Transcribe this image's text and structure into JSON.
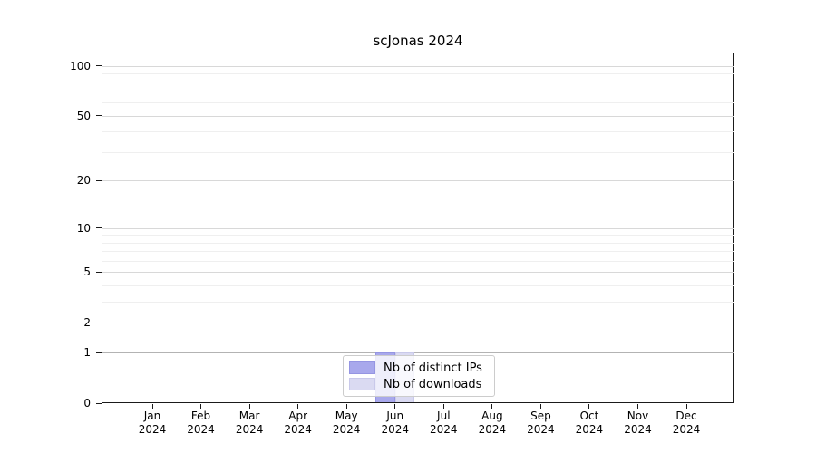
{
  "figure": {
    "background": "#ffffff"
  },
  "chart_data": {
    "type": "bar",
    "title": "scJonas 2024",
    "categories": [
      "Jan",
      "Feb",
      "Mar",
      "Apr",
      "May",
      "Jun",
      "Jul",
      "Aug",
      "Sep",
      "Oct",
      "Nov",
      "Dec"
    ],
    "year_label": "2024",
    "series": [
      {
        "name": "Nb of distinct IPs",
        "color": "#a8a8ec",
        "edge_color": "#9595e2",
        "values": [
          0,
          0,
          0,
          0,
          0,
          1,
          0,
          0,
          0,
          0,
          0,
          0
        ]
      },
      {
        "name": "Nb of downloads",
        "color": "#dadaf2",
        "edge_color": "#c9c9ea",
        "values": [
          0,
          0,
          0,
          0,
          0,
          1,
          0,
          0,
          0,
          0,
          0,
          0
        ]
      }
    ],
    "xlabel": "",
    "ylabel": "",
    "y_axis": {
      "scale": "log10(1+v)",
      "ticks": [
        0,
        1,
        2,
        5,
        10,
        20,
        50,
        100
      ],
      "minor_gridlines": [
        3,
        4,
        6,
        7,
        8,
        9,
        30,
        40,
        60,
        70,
        80,
        90
      ],
      "range": [
        0,
        120
      ]
    },
    "grid": {
      "major_color": "#d8d8d8",
      "minor_color": "#efefef",
      "baseline_one_color": "#b3b3b3"
    },
    "legend": {
      "position": "bottom-center-inside",
      "entries": [
        "Nb of distinct IPs",
        "Nb of downloads"
      ]
    }
  }
}
